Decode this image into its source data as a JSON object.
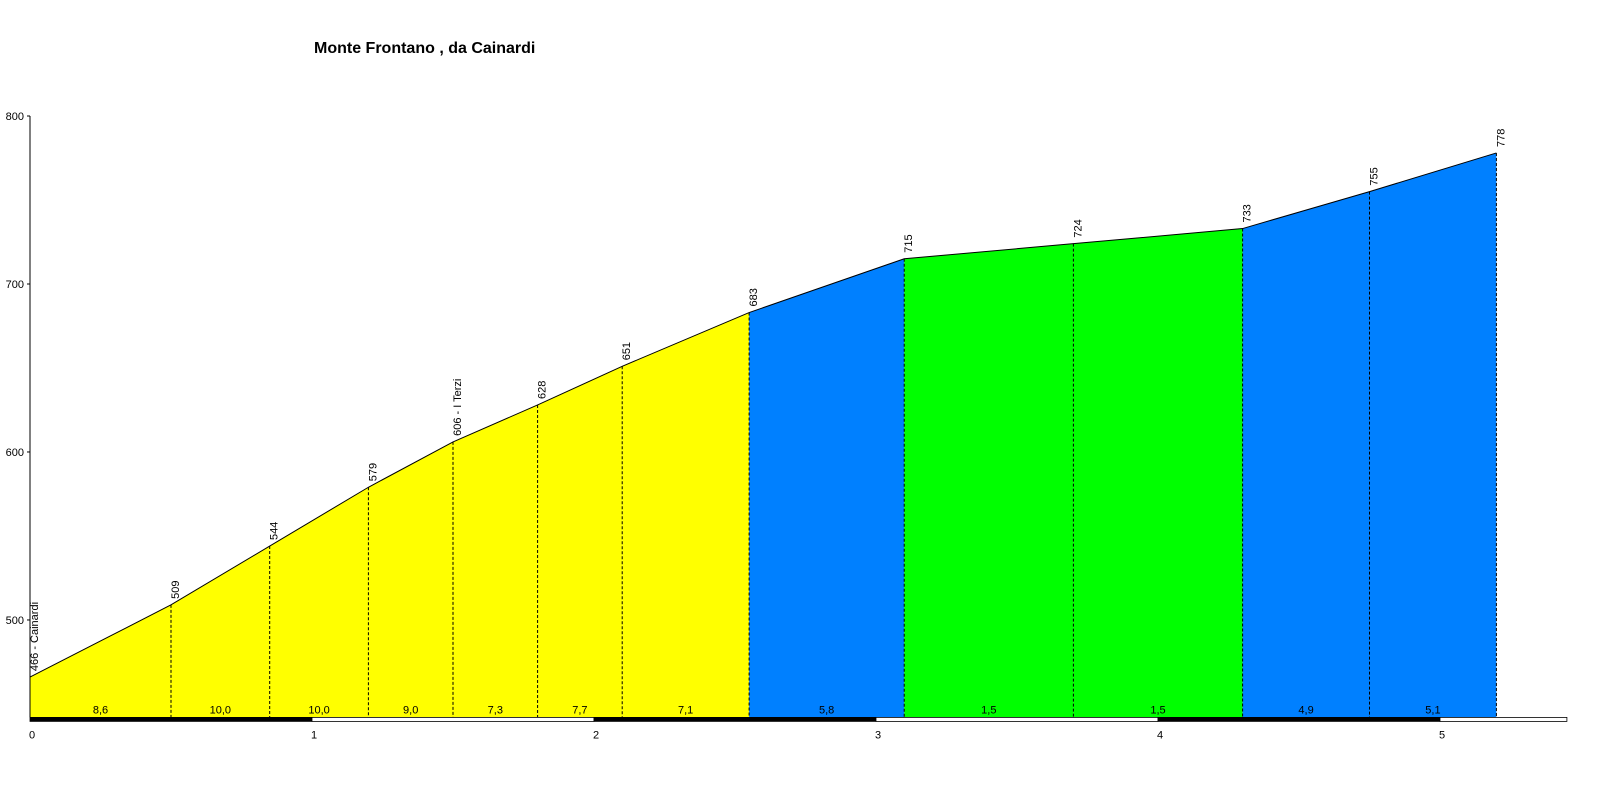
{
  "chart_data": {
    "type": "area",
    "title": "Monte Frontano , da Cainardi",
    "x": [
      0,
      0.5,
      0.85,
      1.2,
      1.5,
      1.8,
      2.1,
      2.55,
      3.1,
      3.7,
      4.3,
      4.75,
      5.2
    ],
    "values": [
      466,
      509,
      544,
      579,
      606,
      628,
      651,
      683,
      715,
      724,
      733,
      755,
      778
    ],
    "value_labels": [
      "466 - Cainardi",
      "509",
      "544",
      "579",
      "606 - I Terzi",
      "628",
      "651",
      "683",
      "715",
      "724",
      "733",
      "755",
      "778"
    ],
    "segments": [
      {
        "label": "8,6",
        "color": "#ffff00"
      },
      {
        "label": "10,0",
        "color": "#ffff00"
      },
      {
        "label": "10,0",
        "color": "#ffff00"
      },
      {
        "label": "9,0",
        "color": "#ffff00"
      },
      {
        "label": "7,3",
        "color": "#ffff00"
      },
      {
        "label": "7,7",
        "color": "#ffff00"
      },
      {
        "label": "7,1",
        "color": "#ffff00"
      },
      {
        "label": "5,8",
        "color": "#0080ff"
      },
      {
        "label": "1,5",
        "color": "#00ff00"
      },
      {
        "label": "1,5",
        "color": "#00ff00"
      },
      {
        "label": "4,9",
        "color": "#0080ff"
      },
      {
        "label": "5,1",
        "color": "#0080ff"
      }
    ],
    "xlim": [
      0,
      5.45
    ],
    "ylim": [
      442,
      800
    ],
    "xticks": [
      0,
      1,
      2,
      3,
      4,
      5
    ],
    "yticks": [
      500,
      600,
      700,
      800
    ]
  }
}
